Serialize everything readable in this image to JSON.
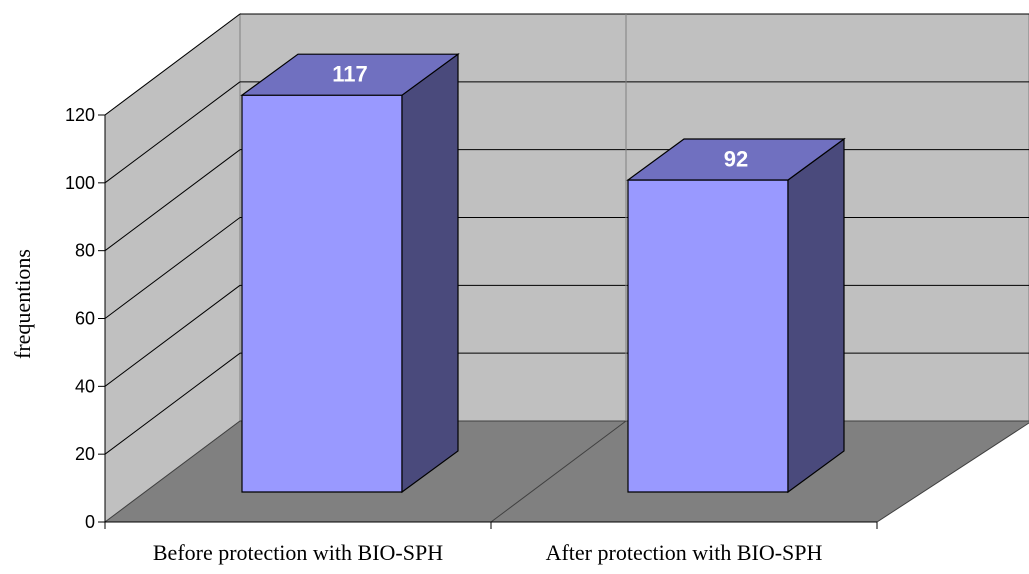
{
  "chart_data": {
    "type": "bar",
    "title": "",
    "xlabel": "",
    "ylabel": "frequentions",
    "categories": [
      "Before protection with BIO-SPH",
      "After protection with BIO-SPH"
    ],
    "series": [
      {
        "values": [
          117,
          92
        ]
      }
    ],
    "data_labels": [
      "117",
      "92"
    ],
    "yticks": [
      0,
      20,
      40,
      60,
      80,
      100,
      120
    ],
    "ylim": [
      0,
      120
    ],
    "grid": true,
    "legend": "none",
    "style": "3d",
    "colors": {
      "bar_front": "#9999ff",
      "bar_top": "#7070c0",
      "bar_side": "#4a4a7c",
      "back_wall": "#c0c0c0",
      "side_wall": "#c0c0c0",
      "floor": "#808080"
    }
  }
}
